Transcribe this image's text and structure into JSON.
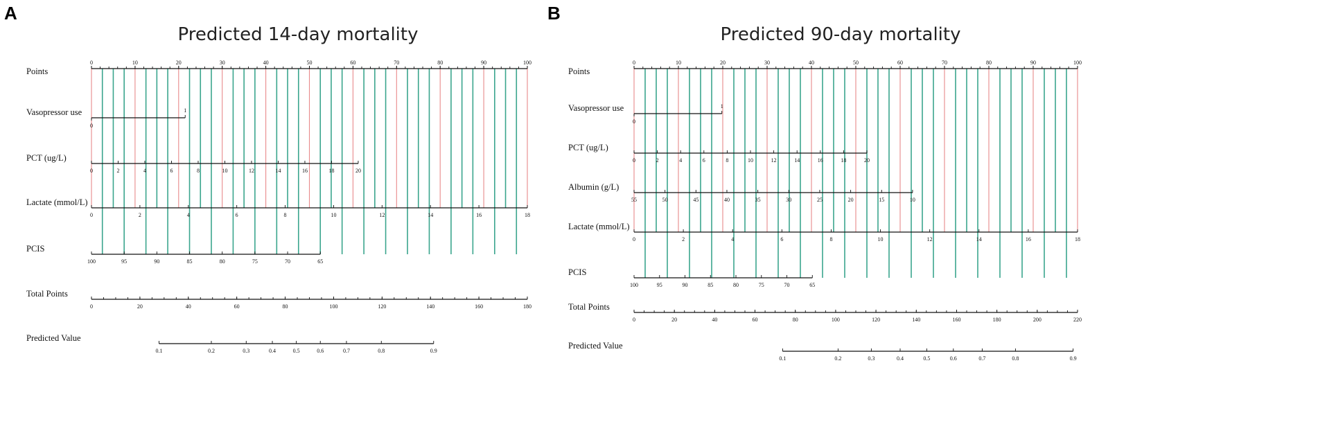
{
  "chart_data": [
    {
      "panel": "A",
      "title": "Predicted 14-day mortality",
      "type": "nomogram",
      "grid_colors": {
        "major": "#e8898a",
        "minor": "#3aa58d"
      },
      "rows": [
        {
          "label": "Points",
          "ticks": [
            "0",
            "10",
            "20",
            "30",
            "40",
            "50",
            "60",
            "70",
            "80",
            "90",
            "100"
          ],
          "points_range": [
            0,
            100
          ]
        },
        {
          "label": "Vasopressor use",
          "ticks": [
            "0",
            "1"
          ],
          "points_range": [
            0,
            21.5
          ],
          "kind": "binary"
        },
        {
          "label": "PCT (ug/L)",
          "ticks": [
            "0",
            "2",
            "4",
            "6",
            "8",
            "10",
            "12",
            "14",
            "16",
            "18",
            "20"
          ],
          "points_range": [
            0,
            61.2
          ]
        },
        {
          "label": "Lactate (mmol/L)",
          "ticks": [
            "0",
            "2",
            "4",
            "6",
            "8",
            "10",
            "12",
            "14",
            "16",
            "18"
          ],
          "points_range": [
            0,
            100
          ]
        },
        {
          "label": "PCIS",
          "ticks": [
            "100",
            "95",
            "90",
            "85",
            "80",
            "75",
            "70",
            "65"
          ],
          "points_range": [
            0,
            52.5
          ]
        },
        {
          "label": "Total Points",
          "ticks": [
            "0",
            "20",
            "40",
            "60",
            "80",
            "100",
            "120",
            "140",
            "160",
            "180"
          ],
          "points_range": [
            0,
            100
          ]
        },
        {
          "label": "Predicted Value",
          "ticks": [
            "0.1",
            "0.2",
            "0.3",
            "0.4",
            "0.5",
            "0.6",
            "0.7",
            "0.8",
            "0.9"
          ],
          "kind": "predicted",
          "tick_total_points": [
            15.5,
            27.5,
            35.5,
            41.5,
            47.0,
            52.5,
            58.5,
            66.5,
            78.5
          ]
        }
      ]
    },
    {
      "panel": "B",
      "title": "Predicted 90-day mortality",
      "type": "nomogram",
      "grid_colors": {
        "major": "#e8898a",
        "minor": "#3aa58d"
      },
      "rows": [
        {
          "label": "Points",
          "ticks": [
            "0",
            "10",
            "20",
            "30",
            "40",
            "50",
            "60",
            "70",
            "80",
            "90",
            "100"
          ],
          "points_range": [
            0,
            100
          ]
        },
        {
          "label": "Vasopressor use",
          "ticks": [
            "0",
            "1"
          ],
          "points_range": [
            0,
            19.8
          ],
          "kind": "binary"
        },
        {
          "label": "PCT (ug/L)",
          "ticks": [
            "0",
            "2",
            "4",
            "6",
            "8",
            "10",
            "12",
            "14",
            "16",
            "18",
            "20"
          ],
          "points_range": [
            0,
            52.5
          ]
        },
        {
          "label": "Albumin (g/L)",
          "ticks": [
            "55",
            "50",
            "45",
            "40",
            "35",
            "30",
            "25",
            "20",
            "15",
            "10"
          ],
          "points_range": [
            0,
            62.8
          ]
        },
        {
          "label": "Lactate (mmol/L)",
          "ticks": [
            "0",
            "2",
            "4",
            "6",
            "8",
            "10",
            "12",
            "14",
            "16",
            "18"
          ],
          "points_range": [
            0,
            100
          ]
        },
        {
          "label": "PCIS",
          "ticks": [
            "100",
            "95",
            "90",
            "85",
            "80",
            "75",
            "70",
            "65"
          ],
          "points_range": [
            0,
            40.2
          ]
        },
        {
          "label": "Total Points",
          "ticks": [
            "0",
            "20",
            "40",
            "60",
            "80",
            "100",
            "120",
            "140",
            "160",
            "180",
            "200",
            "220"
          ],
          "points_range": [
            0,
            100
          ]
        },
        {
          "label": "Predicted Value",
          "ticks": [
            "0.1",
            "0.2",
            "0.3",
            "0.4",
            "0.5",
            "0.6",
            "0.7",
            "0.8",
            "0.9"
          ],
          "kind": "predicted",
          "tick_total_points": [
            33.5,
            46.0,
            53.5,
            60.0,
            66.0,
            72.0,
            78.5,
            86.0,
            99.0
          ]
        }
      ]
    }
  ]
}
